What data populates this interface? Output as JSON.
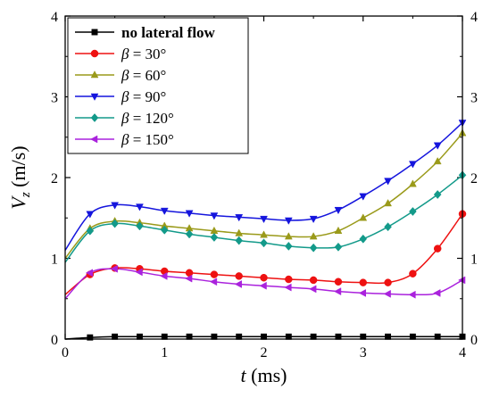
{
  "chart_data": {
    "type": "line",
    "xlabel_var": "t",
    "xlabel_unit": " (ms)",
    "ylabel_var": "V",
    "ylabel_sub": "z",
    "ylabel_unit": " (m/s)",
    "xlim": [
      0,
      4
    ],
    "ylim": [
      0,
      4
    ],
    "x_ticks": [
      "0",
      "1",
      "2",
      "3",
      "4"
    ],
    "y_ticks": [
      "0",
      "1",
      "2",
      "3",
      "4"
    ],
    "y_ticks_right": [
      "0",
      "1",
      "2",
      "3",
      "4"
    ],
    "legend_position": "top-left",
    "grid": false,
    "series": [
      {
        "name": "no lateral flow",
        "legend_label": "no lateral flow",
        "color": "#000000",
        "marker": "square",
        "x": [
          0,
          0.25,
          0.5,
          0.75,
          1,
          1.25,
          1.5,
          1.75,
          2,
          2.25,
          2.5,
          2.75,
          3,
          3.25,
          3.5,
          3.75,
          4
        ],
        "y": [
          0.0,
          0.02,
          0.03,
          0.03,
          0.03,
          0.03,
          0.03,
          0.03,
          0.03,
          0.03,
          0.03,
          0.03,
          0.03,
          0.03,
          0.03,
          0.03,
          0.03
        ]
      },
      {
        "name": "β = 30°",
        "legend_label": "= 30°",
        "color": "#ee1111",
        "marker": "circle",
        "x": [
          0,
          0.25,
          0.5,
          0.75,
          1,
          1.25,
          1.5,
          1.75,
          2,
          2.25,
          2.5,
          2.75,
          3,
          3.25,
          3.5,
          3.75,
          4
        ],
        "y": [
          0.55,
          0.8,
          0.88,
          0.87,
          0.84,
          0.82,
          0.8,
          0.78,
          0.76,
          0.74,
          0.73,
          0.71,
          0.7,
          0.7,
          0.81,
          1.12,
          1.55
        ]
      },
      {
        "name": "β = 60°",
        "legend_label": "= 60°",
        "color": "#9a9a1a",
        "marker": "triangle-up",
        "x": [
          0,
          0.25,
          0.5,
          0.75,
          1,
          1.25,
          1.5,
          1.75,
          2,
          2.25,
          2.5,
          2.75,
          3,
          3.25,
          3.5,
          3.75,
          4
        ],
        "y": [
          1.0,
          1.37,
          1.46,
          1.44,
          1.4,
          1.37,
          1.34,
          1.31,
          1.29,
          1.27,
          1.27,
          1.34,
          1.5,
          1.68,
          1.92,
          2.2,
          2.55
        ]
      },
      {
        "name": "β = 90°",
        "legend_label": "= 90°",
        "color": "#1515dd",
        "marker": "triangle-down",
        "x": [
          0,
          0.25,
          0.5,
          0.75,
          1,
          1.25,
          1.5,
          1.75,
          2,
          2.25,
          2.5,
          2.75,
          3,
          3.25,
          3.5,
          3.75,
          4
        ],
        "y": [
          1.1,
          1.55,
          1.66,
          1.64,
          1.59,
          1.56,
          1.53,
          1.51,
          1.49,
          1.47,
          1.49,
          1.6,
          1.77,
          1.96,
          2.17,
          2.4,
          2.68
        ]
      },
      {
        "name": "β = 120°",
        "legend_label": "= 120°",
        "color": "#139a8a",
        "marker": "diamond",
        "x": [
          0,
          0.25,
          0.5,
          0.75,
          1,
          1.25,
          1.5,
          1.75,
          2,
          2.25,
          2.5,
          2.75,
          3,
          3.25,
          3.5,
          3.75,
          4
        ],
        "y": [
          0.95,
          1.34,
          1.43,
          1.4,
          1.35,
          1.3,
          1.26,
          1.22,
          1.19,
          1.15,
          1.13,
          1.14,
          1.24,
          1.39,
          1.58,
          1.79,
          2.03
        ]
      },
      {
        "name": "β = 150°",
        "legend_label": "= 150°",
        "color": "#aa22dd",
        "marker": "triangle-left",
        "x": [
          0,
          0.25,
          0.5,
          0.75,
          1,
          1.25,
          1.5,
          1.75,
          2,
          2.25,
          2.5,
          2.75,
          3,
          3.25,
          3.5,
          3.75,
          4
        ],
        "y": [
          0.5,
          0.82,
          0.87,
          0.83,
          0.78,
          0.75,
          0.71,
          0.68,
          0.66,
          0.64,
          0.62,
          0.59,
          0.57,
          0.56,
          0.55,
          0.57,
          0.73
        ]
      }
    ]
  }
}
